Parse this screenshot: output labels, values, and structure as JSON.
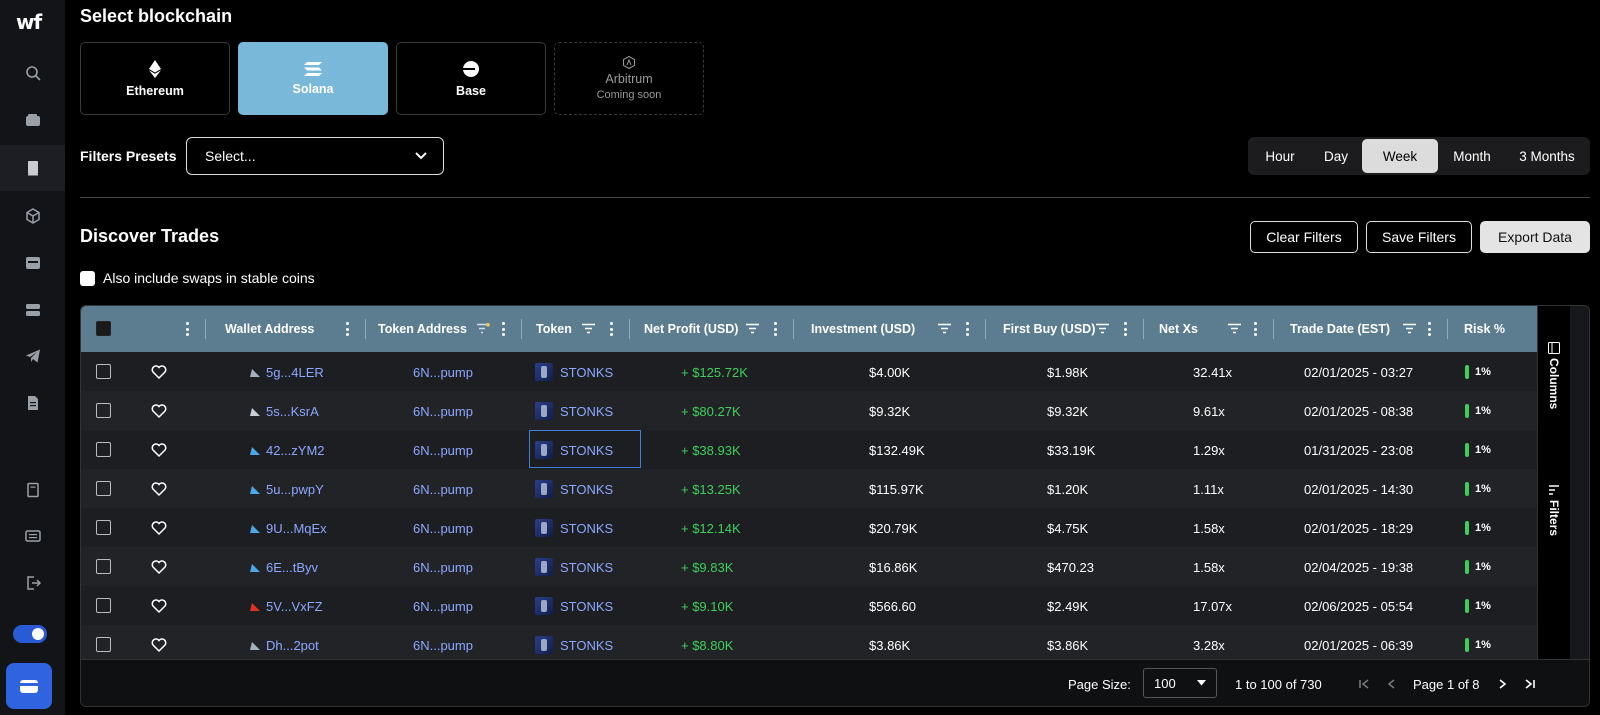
{
  "app": {
    "logo": "wf"
  },
  "sidebar": {
    "items": [
      {
        "icon": "search-icon"
      },
      {
        "icon": "wallet-icon"
      },
      {
        "icon": "book-icon",
        "active": true
      },
      {
        "icon": "cube-icon"
      },
      {
        "icon": "card-icon"
      },
      {
        "icon": "server-icon"
      },
      {
        "icon": "telegram-icon"
      },
      {
        "icon": "document-icon"
      },
      {
        "icon": "notebook-icon"
      },
      {
        "icon": "news-icon"
      },
      {
        "icon": "logout-icon"
      }
    ]
  },
  "blockchain": {
    "title": "Select blockchain",
    "chains": [
      {
        "label": "Ethereum",
        "icon": "ethereum-icon",
        "selected": false
      },
      {
        "label": "Solana",
        "icon": "solana-icon",
        "selected": true
      },
      {
        "label": "Base",
        "icon": "base-icon",
        "selected": false
      },
      {
        "label": "Arbitrum",
        "sub": "Coming soon",
        "icon": "arbitrum-icon",
        "selected": false
      }
    ]
  },
  "filters": {
    "label": "Filters Presets",
    "placeholder": "Select..."
  },
  "period": {
    "options": [
      "Hour",
      "Day",
      "Week",
      "Month",
      "3 Months"
    ],
    "selected": "Week"
  },
  "discover": {
    "title": "Discover Trades",
    "clear_label": "Clear Filters",
    "save_label": "Save Filters",
    "export_label": "Export Data",
    "stable_label": "Also include swaps in stable coins"
  },
  "table": {
    "headers": {
      "wallet": "Wallet Address",
      "token_address": "Token Address",
      "token": "Token",
      "net_profit": "Net Profit (USD)",
      "investment": "Investment (USD)",
      "first_buy": "First Buy (USD)",
      "net_xs": "Net Xs",
      "trade_date": "Trade Date (EST)",
      "risk": "Risk %"
    },
    "rows": [
      {
        "wallet": "5g...4LER",
        "token_address": "6N...pump",
        "token": "STONKS",
        "net_profit": "+ $125.72K",
        "investment": "$4.00K",
        "first_buy": "$1.98K",
        "net_xs": "32.41x",
        "trade_date": "02/01/2025 - 03:27",
        "risk": "1%"
      },
      {
        "wallet": "5s...KsrA",
        "token_address": "6N...pump",
        "token": "STONKS",
        "net_profit": "+ $80.27K",
        "investment": "$9.32K",
        "first_buy": "$9.32K",
        "net_xs": "9.61x",
        "trade_date": "02/01/2025 - 08:38",
        "risk": "1%"
      },
      {
        "wallet": "42...zYM2",
        "token_address": "6N...pump",
        "token": "STONKS",
        "net_profit": "+ $38.93K",
        "investment": "$132.49K",
        "first_buy": "$33.19K",
        "net_xs": "1.29x",
        "trade_date": "01/31/2025 - 23:08",
        "risk": "1%"
      },
      {
        "wallet": "5u...pwpY",
        "token_address": "6N...pump",
        "token": "STONKS",
        "net_profit": "+ $13.25K",
        "investment": "$115.97K",
        "first_buy": "$1.20K",
        "net_xs": "1.11x",
        "trade_date": "02/01/2025 - 14:30",
        "risk": "1%"
      },
      {
        "wallet": "9U...MqEx",
        "token_address": "6N...pump",
        "token": "STONKS",
        "net_profit": "+ $12.14K",
        "investment": "$20.79K",
        "first_buy": "$4.75K",
        "net_xs": "1.58x",
        "trade_date": "02/01/2025 - 18:29",
        "risk": "1%"
      },
      {
        "wallet": "6E...tByv",
        "token_address": "6N...pump",
        "token": "STONKS",
        "net_profit": "+ $9.83K",
        "investment": "$16.86K",
        "first_buy": "$470.23",
        "net_xs": "1.58x",
        "trade_date": "02/04/2025 - 19:38",
        "risk": "1%"
      },
      {
        "wallet": "5V...VxFZ",
        "token_address": "6N...pump",
        "token": "STONKS",
        "net_profit": "+ $9.10K",
        "investment": "$566.60",
        "first_buy": "$2.49K",
        "net_xs": "17.07x",
        "trade_date": "02/06/2025 - 05:54",
        "risk": "1%"
      },
      {
        "wallet": "Dh...2pot",
        "token_address": "6N...pump",
        "token": "STONKS",
        "net_profit": "+ $8.80K",
        "investment": "$3.86K",
        "first_buy": "$3.86K",
        "net_xs": "3.28x",
        "trade_date": "02/01/2025 - 06:39",
        "risk": "1%"
      }
    ],
    "wallet_icon_colors": [
      "#9fb4c0",
      "#c7ced3",
      "#4aa8e8",
      "#4aa8e8",
      "#4aa8e8",
      "#4aa8e8",
      "#e0301e",
      "#9fb4c0"
    ]
  },
  "side_panel": {
    "columns_label": "Columns",
    "filters_label": "Filters"
  },
  "pagination": {
    "page_size_label": "Page Size:",
    "page_size": "100",
    "range": "1 to 100 of 730",
    "page": "Page 1 of 8"
  },
  "colors": {
    "accent": "#79b8d9",
    "header": "#5b7d8f",
    "profit": "#3ecf5a",
    "link": "#8ca7ff",
    "wallet_button": "#2f63e0"
  }
}
